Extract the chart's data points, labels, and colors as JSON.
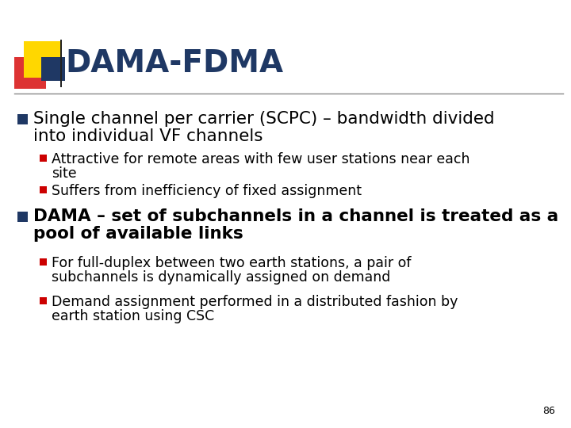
{
  "title": "DAMA-FDMA",
  "title_color": "#1F3864",
  "background_color": "#FFFFFF",
  "slide_number": "86",
  "bullet_color": "#1F3864",
  "sub_bullet_color": "#CC0000",
  "bullet1_line1": "Single channel per carrier (SCPC) – bandwidth divided",
  "bullet1_line2": "into individual VF channels",
  "sub1a_line1": "Attractive for remote areas with few user stations near each",
  "sub1a_line2": "site",
  "sub1b": "Suffers from inefficiency of fixed assignment",
  "bullet2_line1": "DAMA – set of subchannels in a channel is treated as a",
  "bullet2_line2": "pool of available links",
  "sub2a_line1": "For full-duplex between two earth stations, a pair of",
  "sub2a_line2": "subchannels is dynamically assigned on demand",
  "sub2b_line1": "Demand assignment performed in a distributed fashion by",
  "sub2b_line2": "earth station using CSC",
  "logo_yellow": "#FFD700",
  "logo_red": "#DD3333",
  "logo_blue": "#1F3864",
  "divider_color": "#888888",
  "title_fontsize": 28,
  "bullet_fontsize": 15.5,
  "sub_bullet_fontsize": 12.5,
  "slide_num_fontsize": 9
}
